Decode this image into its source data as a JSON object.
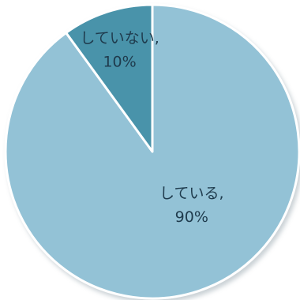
{
  "chart_data": {
    "type": "pie",
    "start": "top",
    "direction": "clockwise",
    "slices": [
      {
        "label": "している",
        "display_label": "している,",
        "value": 90,
        "value_label": "90%",
        "color": "#93c2d6"
      },
      {
        "label": "していない",
        "display_label": "していない,",
        "value": 10,
        "value_label": "10%",
        "color": "#4a93aa"
      }
    ],
    "separator_color": "#ffffff",
    "outline_color": "#ffffff"
  }
}
